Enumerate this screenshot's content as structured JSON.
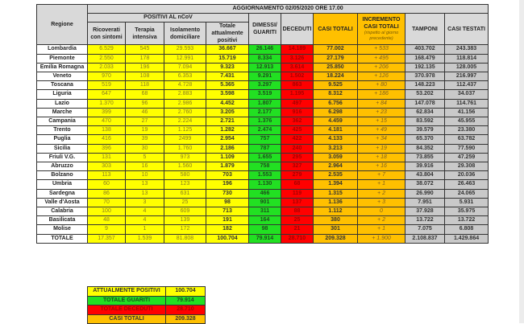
{
  "header": {
    "update": "AGGIORNAMENTO 02/05/2020 ORE 17.00",
    "regione": "Regione",
    "positivi_group": "POSITIVI AL nCoV",
    "ricoverati": "Ricoverati con sintomi",
    "terapia": "Terapia intensiva",
    "isolamento": "Isolamento domiciliare",
    "totale_positivi": "Totale attualmente positivi",
    "dimessi": "DIMESSI/ GUARITI",
    "deceduti": "DECEDUTI",
    "casi_totali": "CASI TOTALI",
    "incremento": "INCREMENTO CASI TOTALI",
    "incremento_note": "(rispetto al giorno precedente)",
    "tamponi": "TAMPONI",
    "casi_testati": "CASI TESTATI"
  },
  "rows": [
    [
      "Lombardia",
      "6.529",
      "545",
      "29.593",
      "36.667",
      "26.146",
      "14.189",
      "77.002",
      "+ 533",
      "403.702",
      "243.383"
    ],
    [
      "Piemonte",
      "2.550",
      "178",
      "12.991",
      "15.719",
      "8.334",
      "3.126",
      "27.179",
      "+ 495",
      "168.479",
      "118.814"
    ],
    [
      "Emilia Romagna",
      "2.033",
      "196",
      "7.094",
      "9.323",
      "12.913",
      "3.614",
      "25.850",
      "+ 206",
      "192.135",
      "128.005"
    ],
    [
      "Veneto",
      "970",
      "108",
      "6.353",
      "7.431",
      "9.291",
      "1.502",
      "18.224",
      "+ 126",
      "370.978",
      "216.997"
    ],
    [
      "Toscana",
      "519",
      "118",
      "4.728",
      "5.365",
      "3.297",
      "863",
      "9.525",
      "+ 80",
      "148.223",
      "112.437"
    ],
    [
      "Liguria",
      "647",
      "68",
      "2.883",
      "3.598",
      "3.519",
      "1.195",
      "8.312",
      "+ 186",
      "53.202",
      "34.037"
    ],
    [
      "Lazio",
      "1.370",
      "96",
      "2.986",
      "4.452",
      "1.807",
      "497",
      "6.756",
      "+ 84",
      "147.078",
      "114.761"
    ],
    [
      "Marche",
      "399",
      "46",
      "2.760",
      "3.205",
      "2.177",
      "916",
      "6.298",
      "+ 23",
      "62.834",
      "41.156"
    ],
    [
      "Campania",
      "470",
      "27",
      "2.224",
      "2.721",
      "1.376",
      "362",
      "4.459",
      "+ 15",
      "83.592",
      "45.955"
    ],
    [
      "Trento",
      "138",
      "19",
      "1.125",
      "1.282",
      "2.474",
      "425",
      "4.181",
      "+ 49",
      "39.579",
      "23.380"
    ],
    [
      "Puglia",
      "416",
      "39",
      "2499",
      "2.954",
      "757",
      "422",
      "4.133",
      "+ 34",
      "65.370",
      "63.782"
    ],
    [
      "Sicilia",
      "396",
      "30",
      "1.760",
      "2.186",
      "787",
      "240",
      "3.213",
      "+ 19",
      "84.352",
      "77.590"
    ],
    [
      "Friuli V.G.",
      "131",
      "5",
      "973",
      "1.109",
      "1.655",
      "295",
      "3.059",
      "+ 18",
      "73.855",
      "47.259"
    ],
    [
      "Abruzzo",
      "303",
      "16",
      "1.560",
      "1.879",
      "758",
      "327",
      "2.964",
      "+ 16",
      "39.916",
      "29.308"
    ],
    [
      "Bolzano",
      "113",
      "10",
      "580",
      "703",
      "1.553",
      "279",
      "2.535",
      "+ 7",
      "43.804",
      "20.036"
    ],
    [
      "Umbria",
      "60",
      "13",
      "123",
      "196",
      "1.130",
      "68",
      "1.394",
      "+ 1",
      "38.072",
      "26.463"
    ],
    [
      "Sardegna",
      "86",
      "13",
      "631",
      "730",
      "466",
      "119",
      "1.315",
      "+ 2",
      "26.990",
      "24.065"
    ],
    [
      "Valle d'Aosta",
      "70",
      "3",
      "25",
      "98",
      "901",
      "137",
      "1.136",
      "+ 3",
      "7.951",
      "5.931"
    ],
    [
      "Calabria",
      "100",
      "4",
      "609",
      "713",
      "311",
      "88",
      "1.112",
      "0",
      "37.928",
      "35.975"
    ],
    [
      "Basilicata",
      "48",
      "4",
      "139",
      "191",
      "164",
      "25",
      "380",
      "+ 2",
      "13.722",
      "13.722"
    ],
    [
      "Molise",
      "9",
      "1",
      "172",
      "182",
      "98",
      "21",
      "301",
      "+ 1",
      "7.075",
      "6.808"
    ]
  ],
  "total": [
    "TOTALE",
    "17.357",
    "1.539",
    "81.808",
    "100.704",
    "79.914",
    "28.710",
    "209.328",
    "+ 1.900",
    "2.108.837",
    "1.429.864"
  ],
  "summary": [
    {
      "label": "ATTUALMENTE POSITIVI",
      "value": "100.704",
      "color": "#ffff00",
      "text": "#333333"
    },
    {
      "label": "TOTALE GUARITI",
      "value": "79.914",
      "color": "#22e022",
      "text": "#1d4d1d"
    },
    {
      "label": "TOTALE DECEDUTI",
      "value": "28.710",
      "color": "#ff0000",
      "text": "#a60000"
    },
    {
      "label": "CASI TOTALI",
      "value": "209.328",
      "color": "#ffc000",
      "text": "#333333"
    }
  ]
}
